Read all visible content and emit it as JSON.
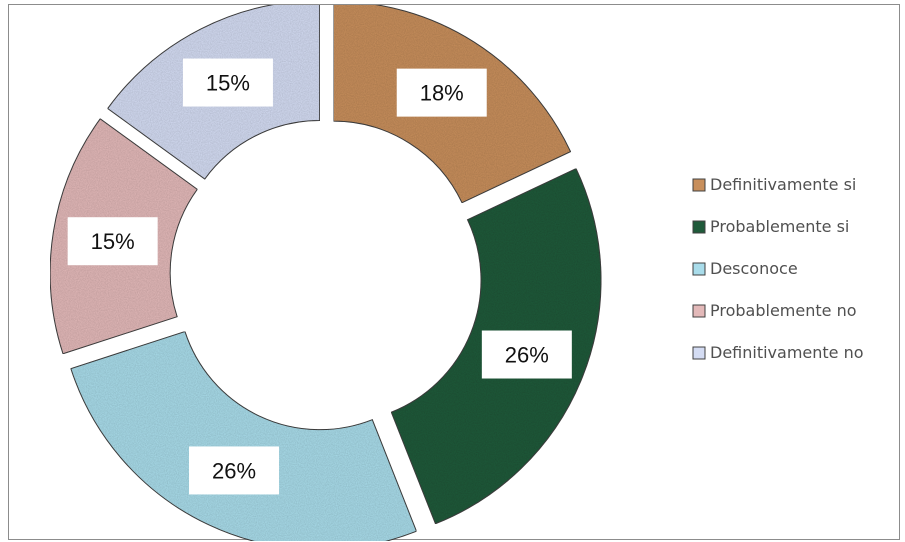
{
  "chart_data": {
    "type": "doughnut",
    "title": "",
    "categories": [
      "Definitivamente si",
      "Probablemente si",
      "Desconoce",
      "Probablemente no",
      "Definitivamente no"
    ],
    "values": [
      18,
      26,
      26,
      15,
      15
    ],
    "labels": [
      "18%",
      "26%",
      "26%",
      "15%",
      "15%"
    ],
    "colors": [
      "#c88f5c",
      "#1f5a3a",
      "#a9dcea",
      "#e3b9b9",
      "#d4dcf3"
    ],
    "legend": {
      "position": "right"
    },
    "exploded": true
  }
}
